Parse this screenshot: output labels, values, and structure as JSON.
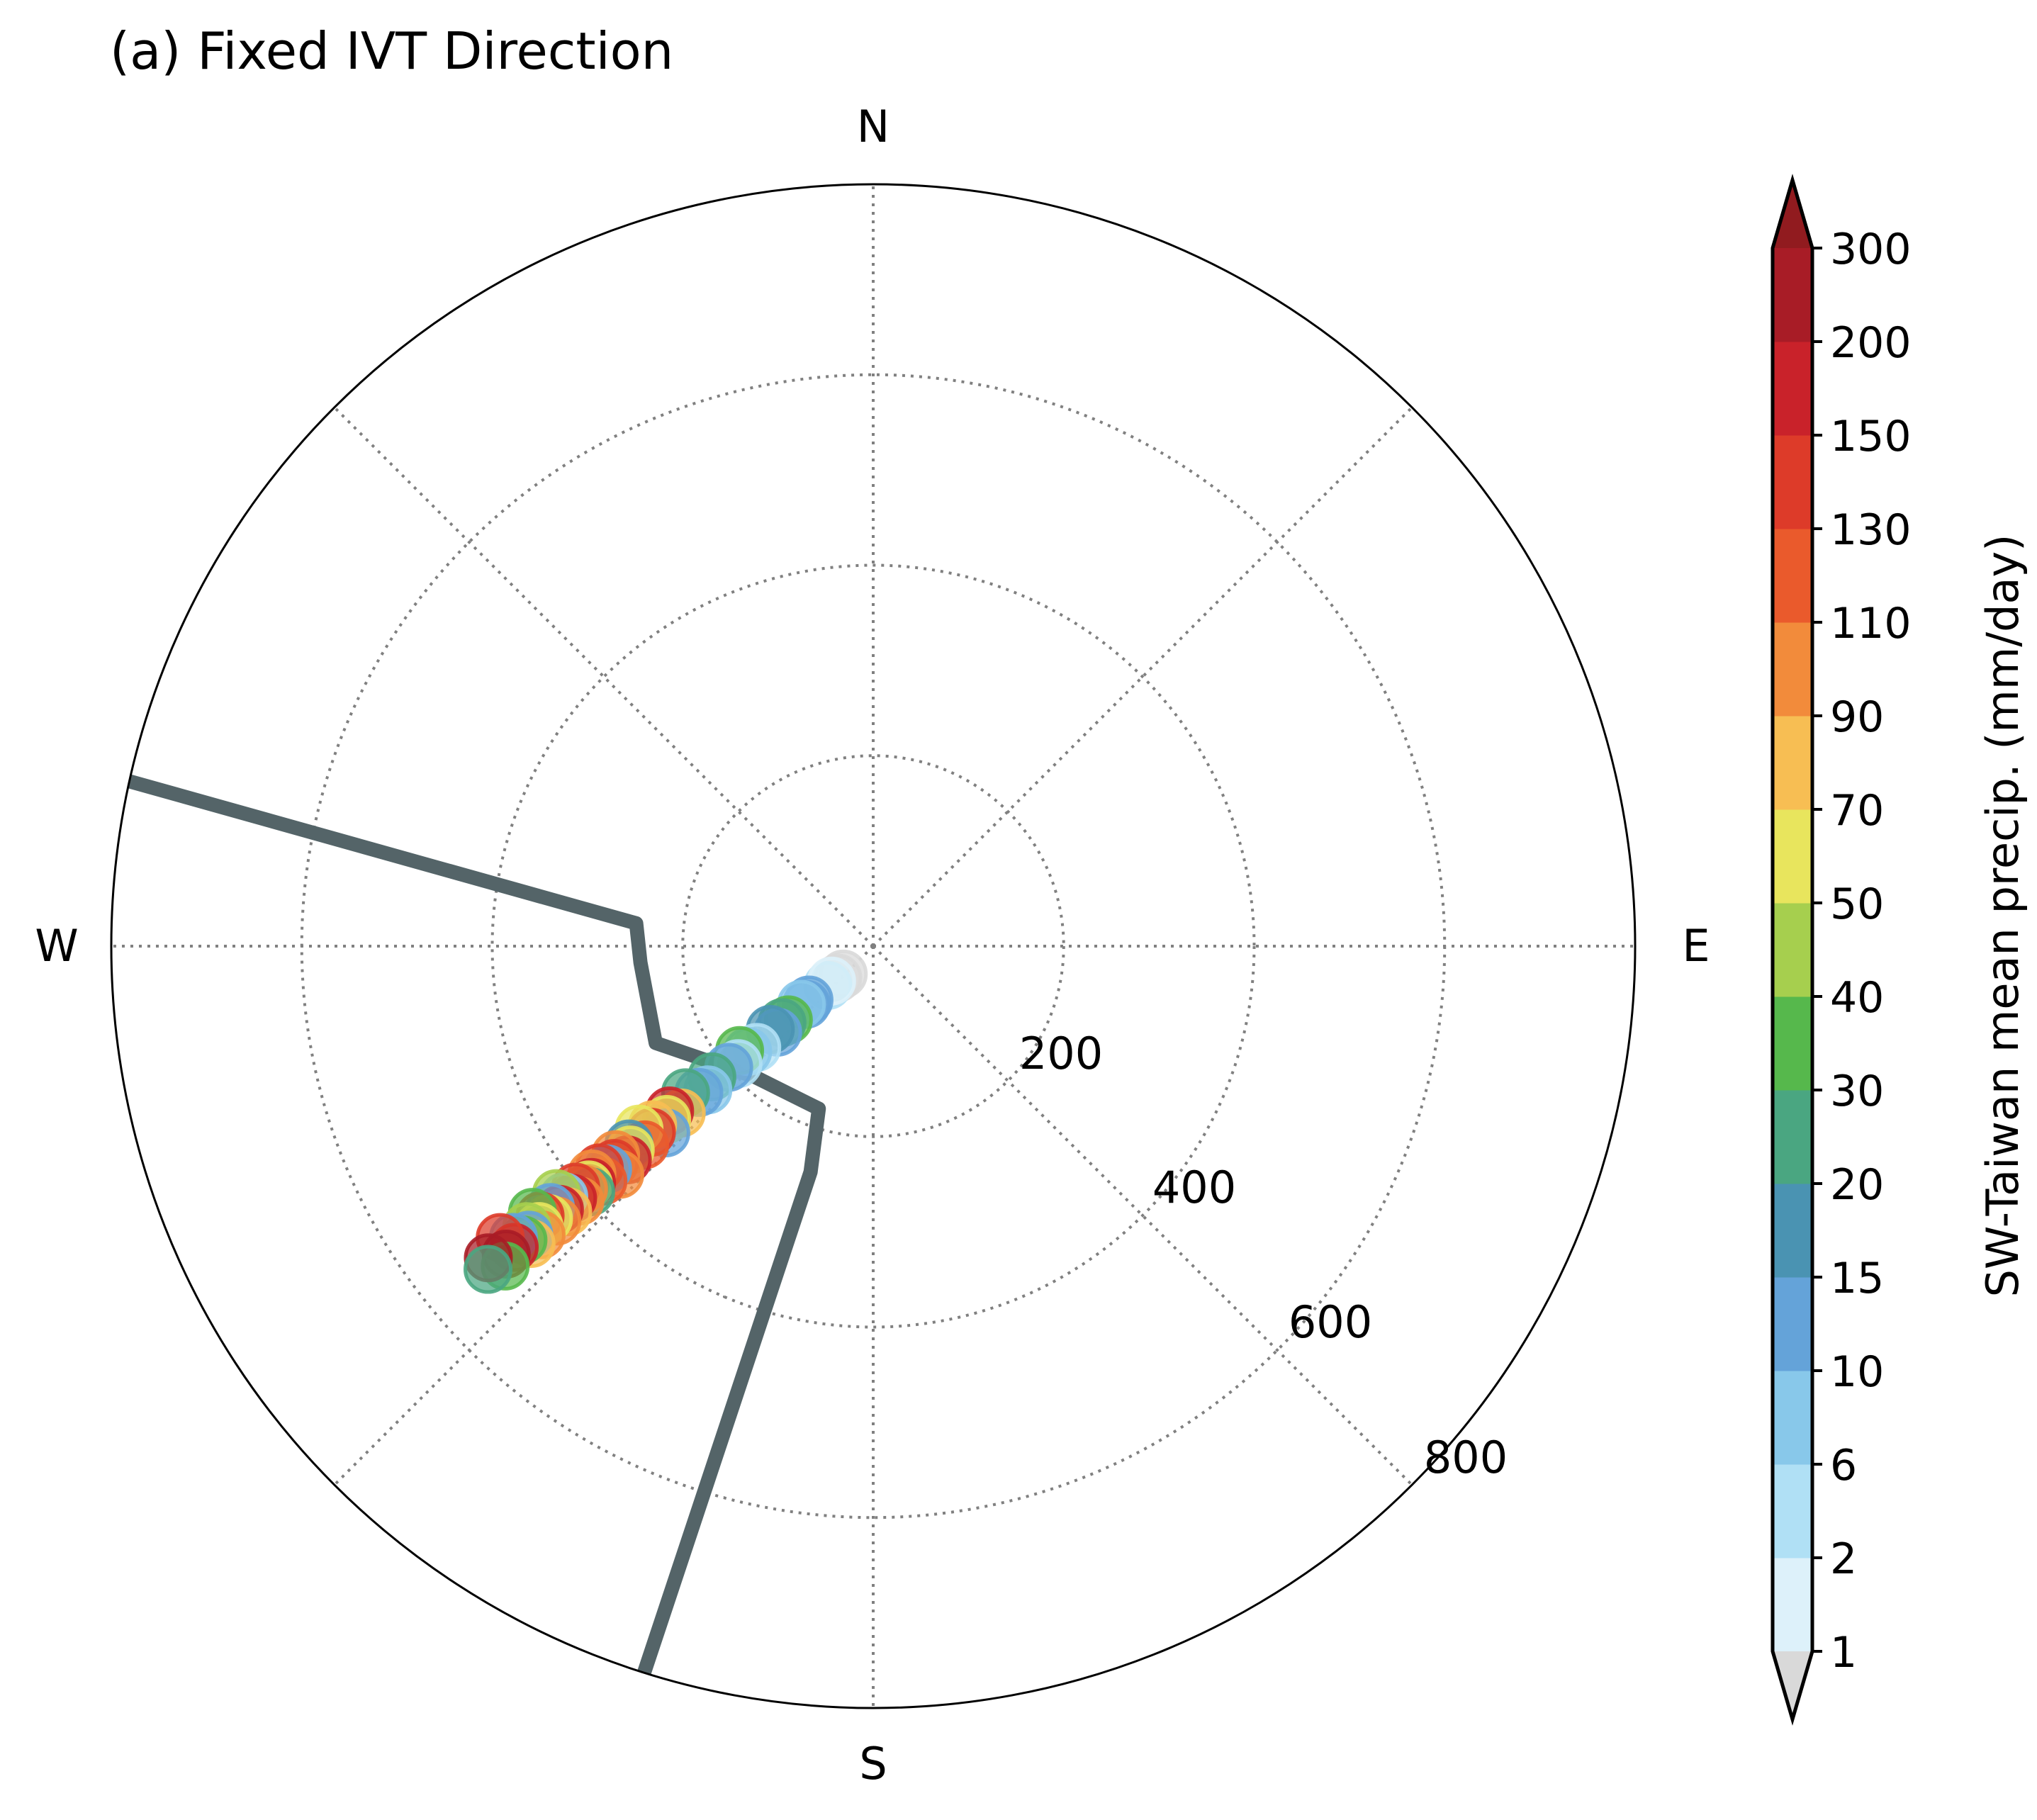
{
  "chart_data": {
    "type": "scatter",
    "projection": "polar",
    "title": "(a) Fixed IVT Direction",
    "theta_direction": "clockwise",
    "theta_zero": "N",
    "compass_labels": [
      "N",
      "E",
      "S",
      "W"
    ],
    "r_ticks": [
      200,
      400,
      600,
      800
    ],
    "r_tick_labels": [
      "200",
      "400",
      "600",
      "800"
    ],
    "rlim": [
      0,
      800
    ],
    "grid": true,
    "theta_grid_deg": [
      0,
      45,
      90,
      135,
      180,
      225,
      270,
      315
    ],
    "boundary_outline": {
      "color": "#546468",
      "points": [
        {
          "theta": 282.5,
          "r": 800
        },
        {
          "theta": 275.5,
          "r": 250
        },
        {
          "theta": 266,
          "r": 245
        },
        {
          "theta": 246,
          "r": 250
        },
        {
          "theta": 222,
          "r": 185
        },
        {
          "theta": 198.5,
          "r": 180
        },
        {
          "theta": 195.5,
          "r": 246
        },
        {
          "theta": 197.5,
          "r": 800
        }
      ]
    },
    "colorbar": {
      "label": "SW-Taiwan mean precip. (mm/day)",
      "extend": "both",
      "tick_labels": [
        "1",
        "2",
        "6",
        "10",
        "15",
        "20",
        "30",
        "40",
        "50",
        "70",
        "90",
        "110",
        "130",
        "150",
        "200",
        "300"
      ],
      "colors": [
        "#ddf1fa",
        "#b0e0f5",
        "#88c8ea",
        "#64a3d9",
        "#4a93b2",
        "#4aa681",
        "#56b84c",
        "#a6cf4e",
        "#e8e55d",
        "#f7be53",
        "#f28b3b",
        "#ea5a2c",
        "#dd3b29",
        "#c9222a",
        "#a81c26"
      ],
      "under_color": "#d9d9d9",
      "over_color": "#911b1f"
    },
    "series": [
      {
        "theta_deg": [
          227,
          228,
          229,
          230,
          230,
          229,
          231,
          229,
          230,
          228,
          231,
          229,
          230,
          232,
          229,
          230,
          231,
          229,
          230,
          232,
          229,
          231,
          230,
          228,
          231,
          230,
          232,
          229,
          231,
          230,
          229,
          231,
          230,
          228,
          230,
          231,
          229,
          231,
          230,
          230,
          229,
          230,
          231,
          229,
          230,
          231,
          232,
          229,
          230,
          231,
          229,
          230,
          231,
          232,
          230,
          229,
          231,
          230,
          229,
          230,
          231,
          230,
          232,
          230,
          229,
          231,
          230
        ],
        "r": [
          43,
          50,
          63,
          57,
          88,
          93,
          97,
          118,
          125,
          135,
          139,
          162,
          172,
          178,
          188,
          198,
          218,
          230,
          239,
          250,
          267,
          275,
          283,
          293,
          298,
          304,
          312,
          318,
          330,
          333,
          342,
          348,
          355,
          358,
          364,
          370,
          376,
          380,
          386,
          390,
          393,
          397,
          402,
          408,
          412,
          418,
          422,
          425,
          430,
          436,
          440,
          445,
          450,
          454,
          458,
          462,
          468,
          472,
          476,
          480,
          486,
          492,
          497,
          503,
          512,
          520,
          528
        ],
        "precip_mm_day": [
          0.5,
          0.8,
          3,
          1.5,
          12,
          11,
          8,
          35,
          25,
          12,
          15,
          5,
          8,
          35,
          4,
          12,
          25,
          6,
          12,
          25,
          80,
          160,
          60,
          12,
          80,
          130,
          60,
          120,
          18,
          60,
          160,
          100,
          140,
          90,
          12,
          140,
          120,
          100,
          160,
          60,
          25,
          90,
          140,
          100,
          160,
          8,
          40,
          80,
          150,
          12,
          100,
          60,
          130,
          35,
          60,
          100,
          40,
          12,
          80,
          35,
          12,
          180,
          140,
          250,
          35,
          300,
          25
        ]
      }
    ]
  }
}
